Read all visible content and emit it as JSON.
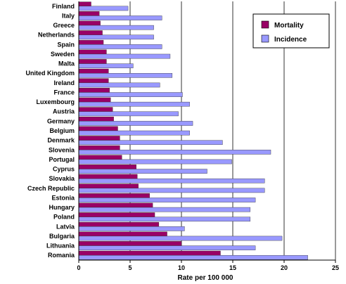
{
  "chart_data": {
    "type": "bar",
    "orientation": "horizontal",
    "categories": [
      "Finland",
      "Italy",
      "Greece",
      "Netherlands",
      "Spain",
      "Sweden",
      "Malta",
      "United Kingdom",
      "Ireland",
      "France",
      "Luxembourg",
      "Austria",
      "Germany",
      "Belgium",
      "Denmark",
      "Slovenia",
      "Portugal",
      "Cyprus",
      "Slovakia",
      "Czech Republic",
      "Estonia",
      "Hungary",
      "Poland",
      "Latvia",
      "Bulgaria",
      "Lithuania",
      "Romania"
    ],
    "series": [
      {
        "name": "Mortality",
        "color": "#990066",
        "values": [
          1.2,
          2.0,
          2.1,
          2.3,
          2.4,
          2.7,
          2.7,
          2.9,
          2.9,
          3.0,
          3.1,
          3.3,
          3.4,
          3.8,
          4.0,
          4.0,
          4.2,
          5.6,
          5.7,
          5.8,
          6.9,
          7.2,
          7.4,
          7.8,
          8.6,
          10.0,
          13.8
        ]
      },
      {
        "name": "Incidence",
        "color": "#9999ff",
        "values": [
          4.8,
          8.1,
          7.3,
          7.3,
          8.1,
          8.9,
          5.3,
          9.1,
          7.9,
          10.1,
          10.8,
          9.7,
          11.1,
          10.8,
          14.0,
          18.7,
          14.9,
          12.5,
          18.1,
          18.1,
          17.2,
          16.7,
          16.7,
          10.3,
          19.8,
          17.2,
          22.3
        ]
      }
    ],
    "xlabel": "Rate per 100 000",
    "xlim": [
      0,
      25
    ],
    "xticks": [
      0,
      5,
      10,
      15,
      20,
      25
    ],
    "grid": "vertical",
    "legend": "top-right"
  }
}
